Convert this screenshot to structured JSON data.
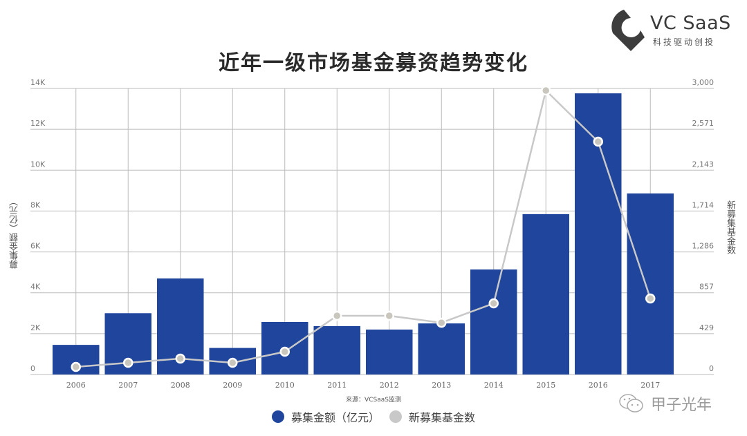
{
  "header": {
    "title": "近年一级市场基金募资趋势变化"
  },
  "logo": {
    "name": "VC SaaS",
    "tagline": "科技驱动创投"
  },
  "axes": {
    "left_label": "募集金额（亿元）",
    "right_label": "新募集基金数",
    "left_ticks": [
      "0",
      "2K",
      "4K",
      "6K",
      "8K",
      "10K",
      "12K",
      "14K"
    ],
    "right_ticks": [
      "0",
      "429",
      "857",
      "1,286",
      "1,714",
      "2,143",
      "2,571",
      "3,000"
    ]
  },
  "source": "来源：VCSaaS监测",
  "legend": {
    "bar_label": "募集金额（亿元）",
    "line_label": "新募集基金数"
  },
  "watermark": "甲子光年",
  "colors": {
    "bar": "#1f459c",
    "line": "#c8c8c8",
    "grid": "#bbbbbb",
    "title": "#2a2a2a"
  },
  "chart_data": {
    "type": "bar",
    "title": "近年一级市场基金募资趋势变化",
    "xlabel": "",
    "ylabel": "募集金额（亿元）",
    "y2label": "新募集基金数",
    "categories": [
      "2006",
      "2007",
      "2008",
      "2009",
      "2010",
      "2011",
      "2012",
      "2013",
      "2014",
      "2015",
      "2016",
      "2017"
    ],
    "series": [
      {
        "name": "募集金额（亿元）",
        "type": "bar",
        "axis": "left",
        "values": [
          1450,
          3000,
          4700,
          1300,
          2570,
          2370,
          2200,
          2500,
          5140,
          7850,
          13760,
          8860
        ]
      },
      {
        "name": "新募集基金数",
        "type": "line",
        "axis": "right",
        "values": [
          80,
          123,
          167,
          123,
          239,
          616,
          616,
          543,
          746,
          2978,
          2442,
          797
        ]
      }
    ],
    "ylim": [
      0,
      14000
    ],
    "y2lim": [
      0,
      3000
    ],
    "grid": true,
    "legend_position": "bottom",
    "annotations": [
      "来源：VCSaaS监测"
    ]
  }
}
